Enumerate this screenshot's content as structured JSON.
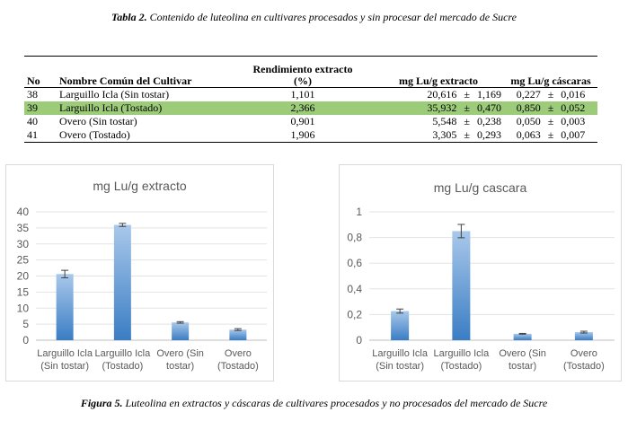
{
  "table": {
    "caption_label": "Tabla 2.",
    "caption_text": "Contenido de luteolina en cultivares procesados y sin procesar del mercado de Sucre",
    "headers": {
      "no": "No",
      "name": "Nombre Común del Cultivar",
      "rend_line1": "Rendimiento extracto",
      "rend_line2": "(%)",
      "extract": "mg Lu/g extracto",
      "peel": "mg Lu/g cáscaras"
    },
    "pm": "±",
    "rows": [
      {
        "no": "38",
        "name": "Larguillo Icla (Sin tostar)",
        "rend": "1,101",
        "ext_v": "20,616",
        "ext_e": "1,169",
        "cas_v": "0,227",
        "cas_e": "0,016",
        "highlight": false
      },
      {
        "no": "39",
        "name": "Larguillo Icla (Tostado)",
        "rend": "2,366",
        "ext_v": "35,932",
        "ext_e": "0,470",
        "cas_v": "0,850",
        "cas_e": "0,052",
        "highlight": true
      },
      {
        "no": "40",
        "name": "Overo (Sin tostar)",
        "rend": "0,901",
        "ext_v": "5,548",
        "ext_e": "0,238",
        "cas_v": "0,050",
        "cas_e": "0,003",
        "highlight": false
      },
      {
        "no": "41",
        "name": "Overo (Tostado)",
        "rend": "1,906",
        "ext_v": "3,305",
        "ext_e": "0,293",
        "cas_v": "0,063",
        "cas_e": "0,007",
        "highlight": false
      }
    ]
  },
  "figure": {
    "caption_label": "Figura 5.",
    "caption_text": "Luteolina en extractos y cáscaras de cultivares procesados y no procesados del mercado de Sucre"
  },
  "chart_data": [
    {
      "type": "bar",
      "title": "mg Lu/g extracto",
      "categories": [
        [
          "Larguillo Icla",
          "(Sin tostar)"
        ],
        [
          "Larguillo Icla",
          "(Tostado)"
        ],
        [
          "Overo (Sin",
          "tostar)"
        ],
        [
          "Overo",
          "(Tostado)"
        ]
      ],
      "values": [
        20.616,
        35.932,
        5.548,
        3.305
      ],
      "errors": [
        1.169,
        0.47,
        0.238,
        0.293
      ],
      "yticks": [
        "0",
        "5",
        "10",
        "15",
        "20",
        "25",
        "30",
        "35",
        "40"
      ],
      "ylim": [
        0,
        40
      ],
      "grid": true,
      "bar_color": "#3a7dc4"
    },
    {
      "type": "bar",
      "title": "mg Lu/g cascara",
      "categories": [
        [
          "Larguillo Icla",
          "(Sin tostar)"
        ],
        [
          "Larguillo Icla",
          "(Tostado)"
        ],
        [
          "Overo (Sin",
          "tostar)"
        ],
        [
          "Overo",
          "(Tostado)"
        ]
      ],
      "values": [
        0.227,
        0.85,
        0.05,
        0.063
      ],
      "errors": [
        0.016,
        0.052,
        0.003,
        0.007
      ],
      "yticks": [
        "0",
        "0,2",
        "0,4",
        "0,6",
        "0,8",
        "1"
      ],
      "ylim": [
        0,
        1
      ],
      "grid": true,
      "bar_color": "#3a7dc4"
    }
  ]
}
